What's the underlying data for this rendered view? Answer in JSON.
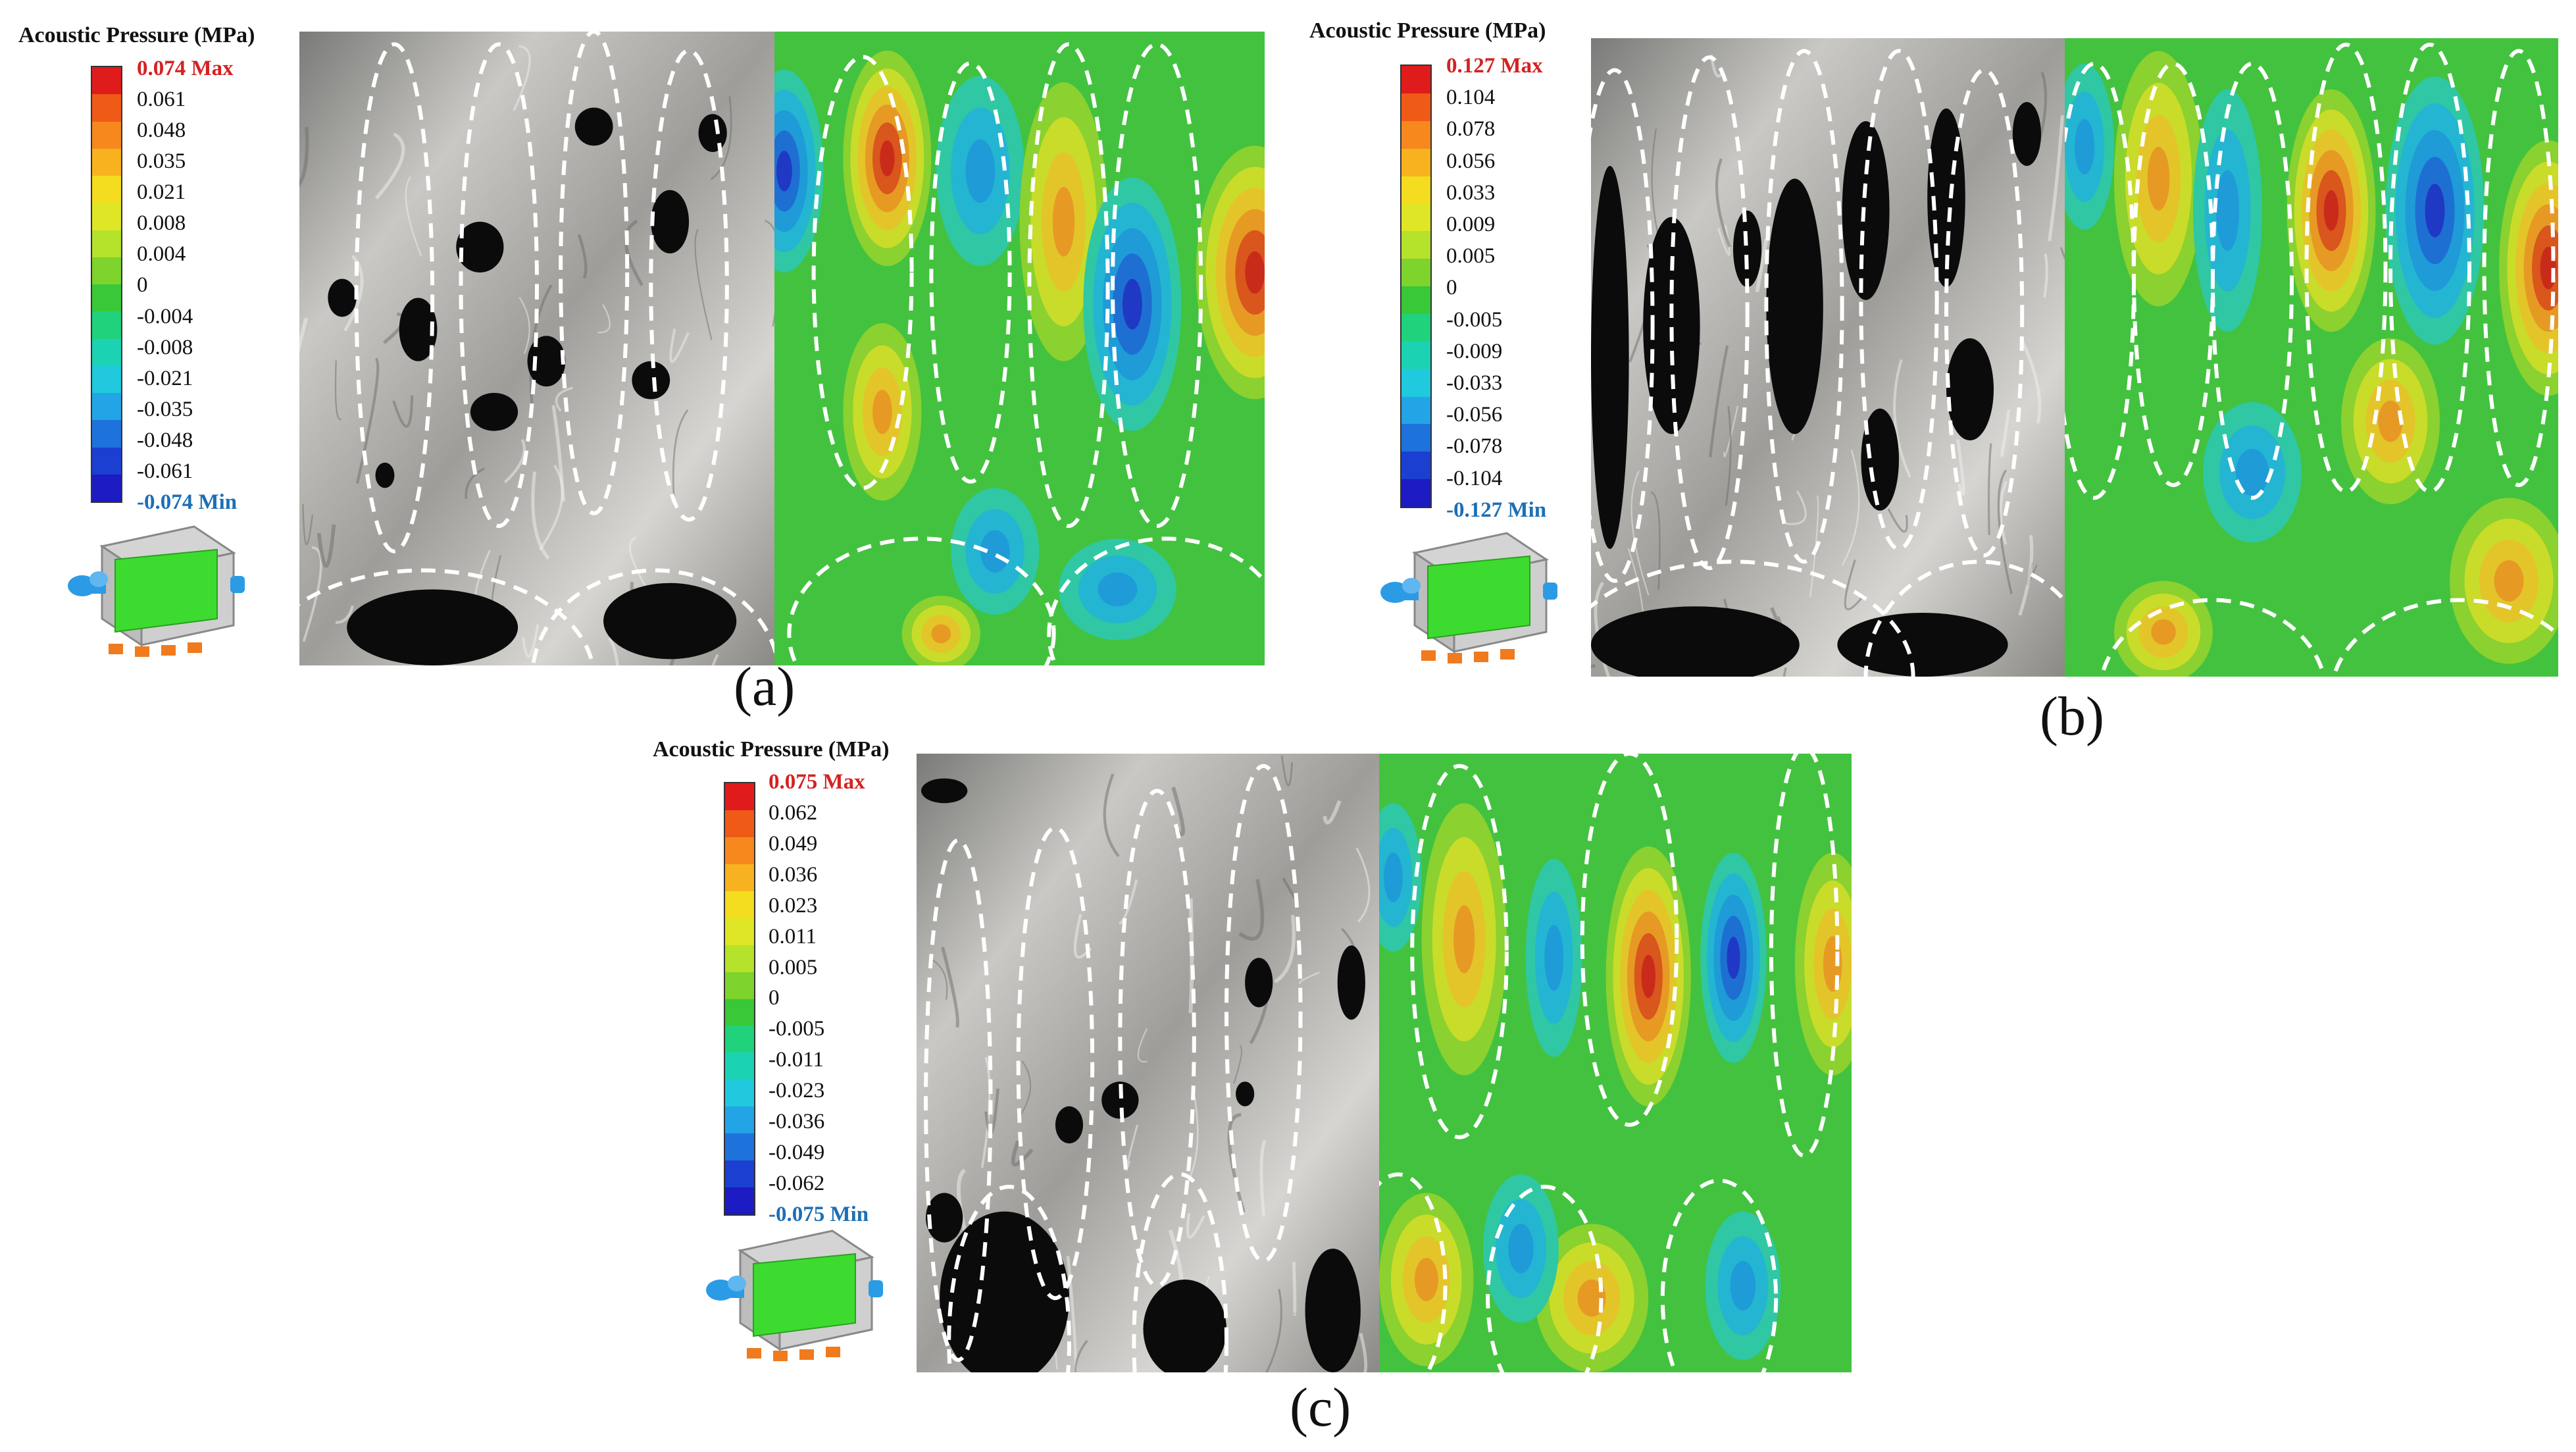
{
  "colors": {
    "scale": [
      "#e01b1b",
      "#f05a17",
      "#f7881e",
      "#f8b21f",
      "#f4dc1e",
      "#dfe625",
      "#b5e22a",
      "#7ed32c",
      "#39c838",
      "#1fd27b",
      "#1bd3b2",
      "#20c9dd",
      "#23a4e6",
      "#1e72dc",
      "#1b3fd0",
      "#1c1bc4"
    ],
    "max": "#d32222",
    "min": "#1e6fb5"
  },
  "icons": [
    "tank-model-icon",
    "dashed-ellipse-overlay"
  ],
  "panels": [
    {
      "id": "a",
      "legend_title": "Acoustic Pressure (MPa)",
      "scale_labels": [
        "0.074 Max",
        "0.061",
        "0.048",
        "0.035",
        "0.021",
        "0.008",
        "0.004",
        "0",
        "-0.004",
        "-0.008",
        "-0.021",
        "-0.035",
        "-0.048",
        "-0.061",
        "-0.074 Min"
      ],
      "caption": "(a)"
    },
    {
      "id": "b",
      "legend_title": "Acoustic Pressure (MPa)",
      "scale_labels": [
        "0.127 Max",
        "0.104",
        "0.078",
        "0.056",
        "0.033",
        "0.009",
        "0.005",
        "0",
        "-0.005",
        "-0.009",
        "-0.033",
        "-0.056",
        "-0.078",
        "-0.104",
        "-0.127 Min"
      ],
      "caption": "(b)"
    },
    {
      "id": "c",
      "legend_title": "Acoustic Pressure (MPa)",
      "scale_labels": [
        "0.075 Max",
        "0.062",
        "0.049",
        "0.036",
        "0.023",
        "0.011",
        "0.005",
        "0",
        "-0.005",
        "-0.011",
        "-0.023",
        "-0.036",
        "-0.049",
        "-0.062",
        "-0.075 Min"
      ],
      "caption": "(c)"
    }
  ]
}
